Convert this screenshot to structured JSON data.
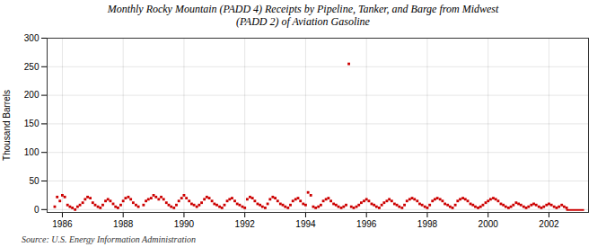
{
  "chart_data": {
    "type": "scatter",
    "title": "Monthly Rocky Mountain (PADD 4) Receipts by Pipeline, Tanker, and Barge from Midwest\n(PADD 2) of Aviation Gasoline",
    "ylabel": "Thousand Barrels",
    "source": "Source: U.S. Energy Information Administration",
    "xlim": [
      1985.5,
      2003.3
    ],
    "xticks": [
      1986,
      1988,
      1990,
      1992,
      1994,
      1996,
      1998,
      2000,
      2002
    ],
    "ylim": [
      -5,
      300
    ],
    "yticks": [
      0,
      50,
      100,
      150,
      200,
      250,
      300
    ],
    "grid": true,
    "series": [
      {
        "type": "scatter",
        "marker": "square",
        "color": "#cc0000",
        "x": [
          1985.75,
          1985.83,
          1985.92,
          1986.0,
          1986.08,
          1986.17,
          1986.25,
          1986.33,
          1986.42,
          1986.5,
          1986.58,
          1986.67,
          1986.75,
          1986.83,
          1986.92,
          1987.0,
          1987.08,
          1987.17,
          1987.25,
          1987.33,
          1987.42,
          1987.5,
          1987.58,
          1987.67,
          1987.75,
          1987.83,
          1987.92,
          1988.0,
          1988.08,
          1988.17,
          1988.25,
          1988.33,
          1988.42,
          1988.5,
          1988.67,
          1988.75,
          1988.83,
          1988.92,
          1989.0,
          1989.08,
          1989.17,
          1989.25,
          1989.33,
          1989.42,
          1989.5,
          1989.58,
          1989.67,
          1989.75,
          1989.83,
          1989.92,
          1990.0,
          1990.08,
          1990.17,
          1990.25,
          1990.33,
          1990.42,
          1990.5,
          1990.58,
          1990.67,
          1990.75,
          1990.83,
          1990.92,
          1991.0,
          1991.08,
          1991.17,
          1991.25,
          1991.33,
          1991.42,
          1991.5,
          1991.58,
          1991.67,
          1991.75,
          1991.83,
          1991.92,
          1992.0,
          1992.08,
          1992.17,
          1992.25,
          1992.33,
          1992.42,
          1992.5,
          1992.58,
          1992.67,
          1992.75,
          1992.83,
          1992.92,
          1993.0,
          1993.08,
          1993.17,
          1993.25,
          1993.33,
          1993.42,
          1993.5,
          1993.58,
          1993.67,
          1993.75,
          1993.83,
          1993.92,
          1994.0,
          1994.08,
          1994.17,
          1994.25,
          1994.33,
          1994.42,
          1994.5,
          1994.58,
          1994.67,
          1994.75,
          1994.83,
          1994.92,
          1995.0,
          1995.08,
          1995.17,
          1995.25,
          1995.33,
          1995.42,
          1995.5,
          1995.58,
          1995.67,
          1995.75,
          1995.83,
          1995.92,
          1996.0,
          1996.08,
          1996.17,
          1996.25,
          1996.33,
          1996.42,
          1996.5,
          1996.58,
          1996.67,
          1996.75,
          1996.83,
          1996.92,
          1997.0,
          1997.08,
          1997.17,
          1997.25,
          1997.33,
          1997.42,
          1997.5,
          1997.58,
          1997.67,
          1997.75,
          1997.83,
          1997.92,
          1998.0,
          1998.08,
          1998.17,
          1998.25,
          1998.33,
          1998.42,
          1998.5,
          1998.58,
          1998.67,
          1998.75,
          1998.83,
          1998.92,
          1999.0,
          1999.08,
          1999.17,
          1999.25,
          1999.33,
          1999.42,
          1999.5,
          1999.58,
          1999.67,
          1999.75,
          1999.83,
          1999.92,
          2000.0,
          2000.08,
          2000.17,
          2000.25,
          2000.33,
          2000.42,
          2000.5,
          2000.58,
          2000.67,
          2000.75,
          2000.83,
          2000.92,
          2001.0,
          2001.08,
          2001.17,
          2001.25,
          2001.33,
          2001.42,
          2001.5,
          2001.58,
          2001.67,
          2001.75,
          2001.83,
          2001.92,
          2002.0,
          2002.08,
          2002.17,
          2002.25,
          2002.33,
          2002.42,
          2002.5,
          2002.58
        ],
        "values": [
          5,
          22,
          15,
          25,
          22,
          8,
          5,
          3,
          0,
          5,
          8,
          12,
          18,
          22,
          20,
          12,
          8,
          5,
          3,
          8,
          15,
          18,
          15,
          10,
          5,
          3,
          8,
          15,
          20,
          22,
          18,
          12,
          8,
          5,
          8,
          15,
          18,
          20,
          25,
          22,
          18,
          22,
          18,
          12,
          8,
          5,
          3,
          8,
          15,
          20,
          25,
          20,
          15,
          10,
          8,
          5,
          8,
          12,
          18,
          22,
          20,
          15,
          10,
          8,
          5,
          3,
          8,
          15,
          18,
          20,
          15,
          10,
          8,
          5,
          3,
          18,
          22,
          20,
          15,
          10,
          8,
          5,
          3,
          10,
          18,
          22,
          20,
          15,
          10,
          8,
          5,
          3,
          8,
          15,
          18,
          20,
          15,
          10,
          8,
          30,
          25,
          5,
          3,
          5,
          8,
          15,
          18,
          20,
          15,
          10,
          8,
          5,
          3,
          5,
          8,
          255,
          5,
          3,
          5,
          8,
          12,
          15,
          18,
          15,
          10,
          8,
          5,
          3,
          8,
          12,
          15,
          18,
          15,
          10,
          8,
          5,
          3,
          8,
          15,
          18,
          20,
          18,
          15,
          10,
          8,
          5,
          3,
          8,
          15,
          18,
          20,
          18,
          15,
          10,
          8,
          5,
          3,
          8,
          15,
          18,
          20,
          18,
          15,
          10,
          8,
          5,
          3,
          5,
          8,
          12,
          15,
          18,
          20,
          18,
          15,
          10,
          8,
          5,
          3,
          5,
          8,
          12,
          10,
          8,
          5,
          3,
          5,
          8,
          10,
          8,
          5,
          3,
          5,
          8,
          10,
          8,
          5,
          3,
          5,
          8,
          5,
          3
        ]
      },
      {
        "type": "bar",
        "color": "#cc0000",
        "x": [
          2002.58
        ],
        "x_end": [
          2003.17
        ],
        "values": [
          -3
        ]
      }
    ]
  }
}
